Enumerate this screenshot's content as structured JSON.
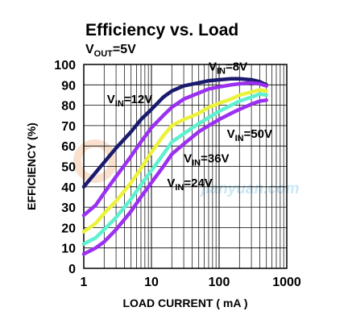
{
  "chart_data": {
    "type": "line",
    "title": "Efficiency vs. Load",
    "subtitle": {
      "main": "V",
      "sub": "OUT",
      "tail": "=5V"
    },
    "xlabel": "LOAD CURRENT ( mA )",
    "ylabel": "EFFICIENCY (%)",
    "xscale": "log",
    "xlim": [
      1,
      1000
    ],
    "ylim": [
      0,
      100
    ],
    "xticks": [
      1,
      10,
      100,
      1000
    ],
    "xtick_labels": [
      "1",
      "10",
      "100",
      "1000"
    ],
    "yticks": [
      0,
      10,
      20,
      30,
      40,
      50,
      60,
      70,
      80,
      90,
      100
    ],
    "ytick_labels": [
      "0",
      "10",
      "20",
      "30",
      "40",
      "50",
      "60",
      "70",
      "80",
      "90",
      "100"
    ],
    "grid": true,
    "series": [
      {
        "name": "VIN=8V",
        "label": {
          "main": "V",
          "sub": "IN",
          "tail": "=8V"
        },
        "color": "#1a1a6e",
        "points": [
          [
            1,
            40
          ],
          [
            1.5,
            47
          ],
          [
            2,
            52
          ],
          [
            3,
            59
          ],
          [
            5,
            67
          ],
          [
            7,
            73
          ],
          [
            10,
            78
          ],
          [
            15,
            84
          ],
          [
            20,
            87
          ],
          [
            30,
            89.5
          ],
          [
            50,
            91
          ],
          [
            70,
            92
          ],
          [
            100,
            92.5
          ],
          [
            150,
            93
          ],
          [
            200,
            93
          ],
          [
            300,
            92.5
          ],
          [
            400,
            91.5
          ],
          [
            500,
            90
          ]
        ]
      },
      {
        "name": "VIN=12V",
        "label": {
          "main": "V",
          "sub": "IN",
          "tail": "=12V"
        },
        "color": "#9b30f0",
        "points": [
          [
            1,
            26
          ],
          [
            1.5,
            31
          ],
          [
            2,
            37
          ],
          [
            3,
            45
          ],
          [
            5,
            55
          ],
          [
            7,
            62
          ],
          [
            10,
            69
          ],
          [
            15,
            75
          ],
          [
            20,
            79
          ],
          [
            30,
            83
          ],
          [
            50,
            86
          ],
          [
            70,
            88
          ],
          [
            100,
            89
          ],
          [
            150,
            90
          ],
          [
            200,
            90.5
          ],
          [
            300,
            91
          ],
          [
            400,
            90.5
          ],
          [
            500,
            89.5
          ]
        ]
      },
      {
        "name": "VIN=36V",
        "label": {
          "main": "V",
          "sub": "IN",
          "tail": "=36V"
        },
        "color": "#ecf23a",
        "points": [
          [
            1,
            18
          ],
          [
            1.5,
            22
          ],
          [
            2,
            27
          ],
          [
            3,
            33
          ],
          [
            5,
            42
          ],
          [
            7,
            49
          ],
          [
            10,
            57
          ],
          [
            15,
            65
          ],
          [
            20,
            70
          ],
          [
            30,
            73
          ],
          [
            50,
            76
          ],
          [
            70,
            79
          ],
          [
            100,
            81
          ],
          [
            150,
            83
          ],
          [
            200,
            85
          ],
          [
            300,
            86.5
          ],
          [
            400,
            87.5
          ],
          [
            500,
            87
          ]
        ]
      },
      {
        "name": "",
        "color": "#5ff0d0",
        "points": [
          [
            1,
            12
          ],
          [
            1.5,
            15
          ],
          [
            2,
            19
          ],
          [
            3,
            25
          ],
          [
            5,
            34
          ],
          [
            7,
            41
          ],
          [
            10,
            48
          ],
          [
            15,
            56
          ],
          [
            20,
            62
          ],
          [
            30,
            66
          ],
          [
            50,
            71
          ],
          [
            70,
            74
          ],
          [
            100,
            77
          ],
          [
            150,
            80
          ],
          [
            200,
            82
          ],
          [
            300,
            84
          ],
          [
            400,
            85.5
          ],
          [
            500,
            85
          ]
        ]
      },
      {
        "name": "VIN=24V",
        "label": {
          "main": "V",
          "sub": "IN",
          "tail": "=24V"
        },
        "color": "#9b30f0",
        "points": [
          [
            1,
            7
          ],
          [
            1.5,
            10
          ],
          [
            2,
            13
          ],
          [
            3,
            19
          ],
          [
            5,
            28
          ],
          [
            7,
            35
          ],
          [
            10,
            42
          ],
          [
            15,
            50
          ],
          [
            20,
            56
          ],
          [
            30,
            61
          ],
          [
            50,
            67
          ],
          [
            70,
            70
          ],
          [
            100,
            73
          ],
          [
            150,
            76
          ],
          [
            200,
            78
          ],
          [
            300,
            80.5
          ],
          [
            400,
            82
          ],
          [
            500,
            82.5
          ]
        ]
      }
    ],
    "annotations": [
      {
        "series": "VIN=8V",
        "main": "V",
        "sub": "IN",
        "tail": "=8V",
        "text_at": [
          70,
          97
        ],
        "arrow_to": null
      },
      {
        "series": "VIN=12V",
        "main": "V",
        "sub": "IN",
        "tail": "=12V",
        "text_at": [
          2.2,
          81
        ],
        "arrow_to": null
      },
      {
        "series": "VIN=50V",
        "main": "V",
        "sub": "IN",
        "tail": "=50V",
        "text_at": [
          130,
          64
        ],
        "arrow_to": null
      },
      {
        "series": "VIN=36V",
        "main": "V",
        "sub": "IN",
        "tail": "=36V",
        "text_at": [
          30,
          52
        ],
        "arrow_to": null
      },
      {
        "series": "VIN=24V",
        "main": "V",
        "sub": "IN",
        "tail": "=24V",
        "text_at": [
          17,
          40
        ],
        "arrow_to": null
      }
    ],
    "watermark": "jianyuan.com"
  }
}
